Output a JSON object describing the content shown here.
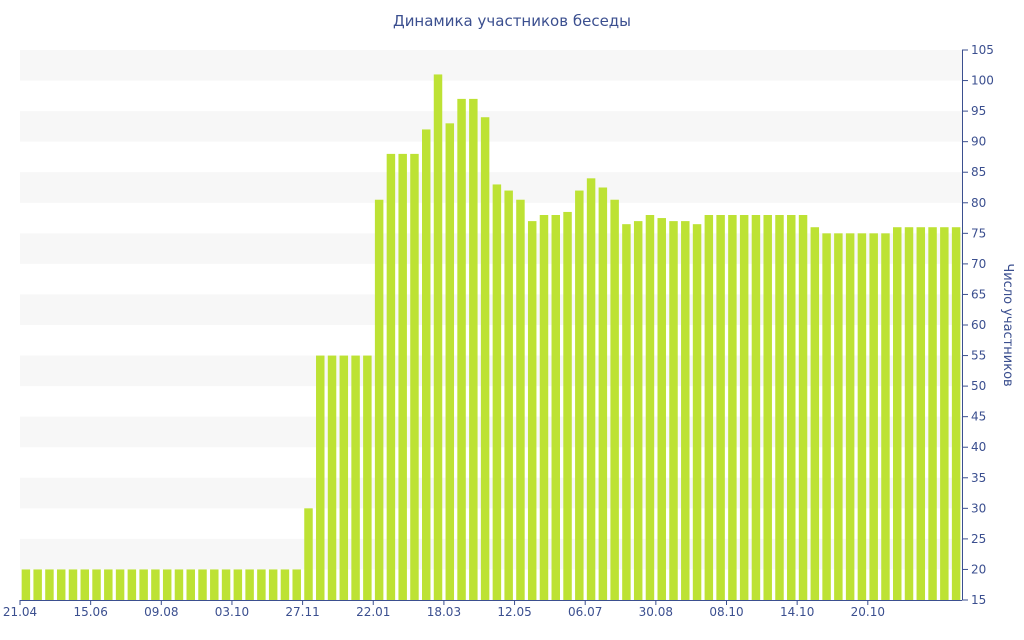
{
  "chart_data": {
    "type": "bar",
    "title": "Динамика участников беседы",
    "ylabel": "Число участников",
    "xlabel": "",
    "ylim": [
      15,
      105
    ],
    "y_ticks": [
      15,
      20,
      25,
      30,
      35,
      40,
      45,
      50,
      55,
      60,
      65,
      70,
      75,
      80,
      85,
      90,
      95,
      100,
      105
    ],
    "y_axis_position": "right",
    "x_tick_labels": [
      "21.04",
      "15.06",
      "09.08",
      "03.10",
      "27.11",
      "22.01",
      "18.03",
      "12.05",
      "06.07",
      "30.08",
      "08.10",
      "14.10",
      "20.10"
    ],
    "x_tick_bar_index": [
      0,
      6,
      12,
      18,
      24,
      30,
      36,
      42,
      48,
      54,
      60,
      66,
      72
    ],
    "grid": "horizontal bands",
    "colors": {
      "bar": "#bde234",
      "band": "#f7f7f7",
      "text": "#3b4f8f",
      "axis": "#3b4f8f"
    },
    "values": [
      20,
      20,
      20,
      20,
      20,
      20,
      20,
      20,
      20,
      20,
      20,
      20,
      20,
      20,
      20,
      20,
      20,
      20,
      20,
      20,
      20,
      20,
      20,
      20,
      30,
      55,
      55,
      55,
      55,
      55,
      80.5,
      88,
      88,
      88,
      92,
      101,
      93,
      97,
      97,
      94,
      83,
      82,
      80.5,
      77,
      78,
      78,
      78.5,
      82,
      84,
      82.5,
      80.5,
      76.5,
      77,
      78,
      77.5,
      77,
      77,
      76.5,
      78,
      78,
      78,
      78,
      78,
      78,
      78,
      78,
      78,
      76,
      75,
      75,
      75,
      75,
      75,
      75,
      76,
      76,
      76,
      76,
      76,
      76
    ]
  }
}
